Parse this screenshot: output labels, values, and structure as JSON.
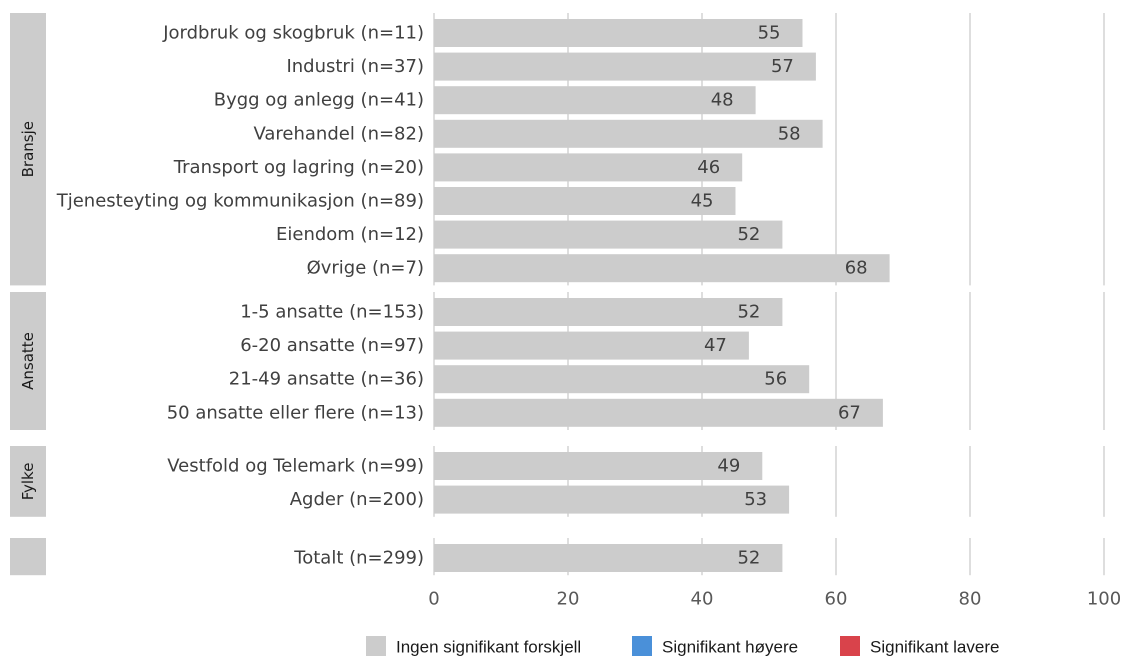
{
  "chart_data": {
    "type": "bar",
    "orientation": "horizontal",
    "xlim": [
      0,
      100
    ],
    "x_ticks": [
      0,
      20,
      40,
      60,
      80,
      100
    ],
    "grid": true,
    "groups": [
      {
        "label": "Bransje",
        "categories": [
          "Jordbruk og skogbruk (n=11)",
          "Industri (n=37)",
          "Bygg og anlegg (n=41)",
          "Varehandel (n=82)",
          "Transport og lagring (n=20)",
          "Tjenesteyting og kommunikasjon (n=89)",
          "Eiendom (n=12)",
          "Øvrige (n=7)"
        ],
        "values": [
          55,
          57,
          48,
          58,
          46,
          45,
          52,
          68
        ]
      },
      {
        "label": "Ansatte",
        "categories": [
          "1-5 ansatte (n=153)",
          "6-20 ansatte (n=97)",
          "21-49 ansatte (n=36)",
          "50 ansatte eller flere (n=13)"
        ],
        "values": [
          52,
          47,
          56,
          67
        ]
      },
      {
        "label": "Fylke",
        "categories": [
          "Vestfold og Telemark (n=99)",
          "Agder (n=200)"
        ],
        "values": [
          49,
          53
        ]
      },
      {
        "label": "",
        "categories": [
          "Totalt (n=299)"
        ],
        "values": [
          52
        ]
      }
    ],
    "legend": {
      "position": "bottom",
      "items": [
        {
          "name": "Ingen signifikant forskjell",
          "color": "#cccccc"
        },
        {
          "name": "Signifikant høyere",
          "color": "#4a90d9"
        },
        {
          "name": "Signifikant lavere",
          "color": "#d9434b"
        }
      ]
    },
    "bar_color": "#cccccc",
    "grid_color": "#dedede",
    "facet_strip_color": "#cccccc"
  }
}
